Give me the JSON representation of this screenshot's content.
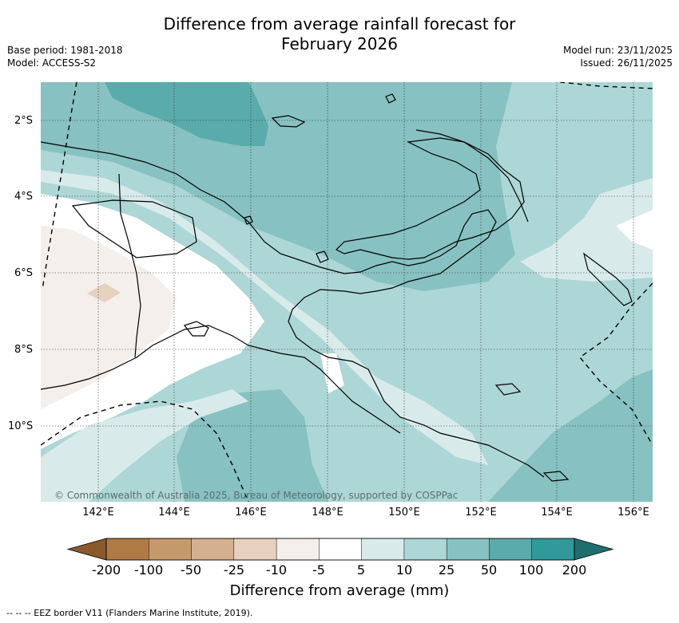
{
  "header": {
    "title_line1": "Difference from average rainfall forecast for",
    "title_line2": "February 2026",
    "base_period": "Base period: 1981-2018",
    "model": "Model: ACCESS-S2",
    "model_run": "Model run: 23/11/2025",
    "issued": "Issued: 26/11/2025"
  },
  "map": {
    "lat_labels": [
      "2°S",
      "4°S",
      "6°S",
      "8°S",
      "10°S"
    ],
    "lon_labels": [
      "142°E",
      "144°E",
      "146°E",
      "148°E",
      "150°E",
      "152°E",
      "154°E",
      "156°E"
    ],
    "copyright": "© Commonwealth of Australia 2025, Bureau of Meteorology, supported by COSPPac"
  },
  "colorbar": {
    "ticks": [
      "-200",
      "-100",
      "-50",
      "-25",
      "-10",
      "-5",
      "5",
      "10",
      "25",
      "50",
      "100",
      "200"
    ],
    "label": "Difference from average (mm)",
    "colors": [
      "#8a5a2c",
      "#b07a45",
      "#c49a6c",
      "#d4b090",
      "#e6d1bf",
      "#f4efea",
      "#ffffff",
      "#d8eaea",
      "#add6d6",
      "#87c1c1",
      "#5aabab",
      "#30999a",
      "#1f6e6e"
    ]
  },
  "legend": {
    "eez": "--  --  -- EEZ border V11 (Flanders Marine Institute, 2019)."
  }
}
